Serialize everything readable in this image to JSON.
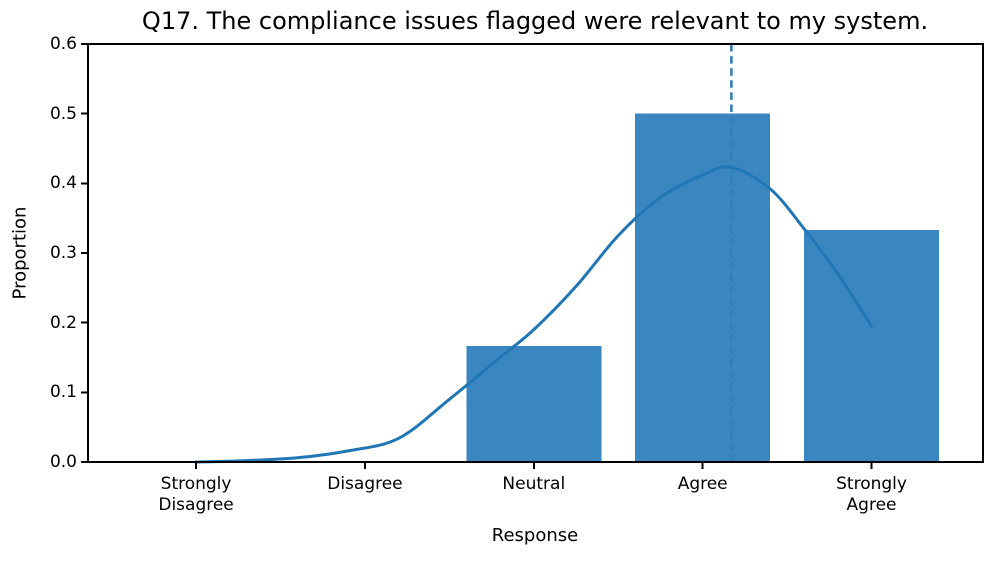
{
  "chart_data": {
    "type": "bar",
    "title": "Q17. The compliance issues flagged were relevant to my system.",
    "xlabel": "Response",
    "ylabel": "Proportion",
    "categories": [
      "Strongly\nDisagree",
      "Disagree",
      "Neutral",
      "Agree",
      "Strongly\nAgree"
    ],
    "values": [
      0.0,
      0.0,
      0.1667,
      0.5,
      0.3333
    ],
    "ylim": [
      0,
      0.6
    ],
    "yticks": [
      0.0,
      0.1,
      0.2,
      0.3,
      0.4,
      0.5,
      0.6
    ],
    "ytick_labels": [
      "0.0",
      "0.1",
      "0.2",
      "0.3",
      "0.4",
      "0.5",
      "0.6"
    ],
    "grid": false,
    "legend": null,
    "bar_rel_width": 0.8,
    "overlays": {
      "kde_curve": {
        "x": [
          0.0,
          0.3,
          0.6,
          0.9,
          1.2,
          1.5,
          1.8,
          2.0,
          2.25,
          2.5,
          2.75,
          3.0,
          3.17,
          3.4,
          3.6,
          3.8,
          4.0
        ],
        "y": [
          0.0,
          0.002,
          0.006,
          0.016,
          0.034,
          0.09,
          0.15,
          0.19,
          0.252,
          0.325,
          0.38,
          0.412,
          0.423,
          0.392,
          0.335,
          0.27,
          0.195
        ]
      },
      "mean_line": {
        "x": 3.17,
        "style": "dashed"
      }
    },
    "colors": {
      "bar": "#3a86c1",
      "kde_line": "#2176b5",
      "mean_line": "#2f7fbc",
      "axis": "#000000"
    }
  }
}
